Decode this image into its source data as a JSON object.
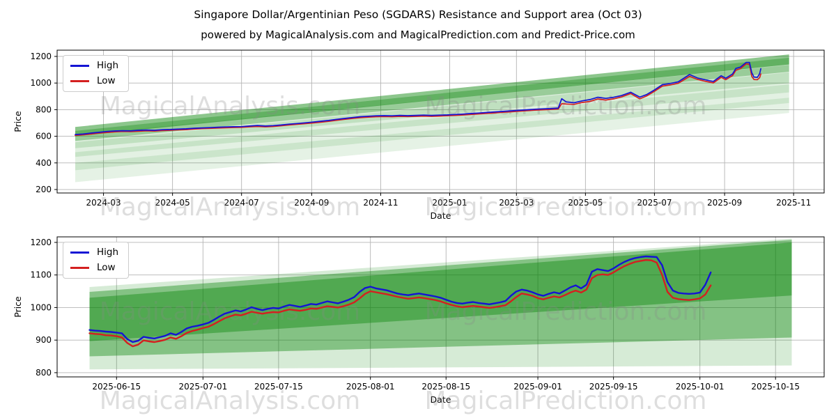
{
  "title": "Singapore Dollar/Argentinian Peso (SGDARS) Resistance and Support area (Oct 03)",
  "subtitle": "powered by MagicalAnalysis.com and MagicalPrediction.com and Predict-Price.com",
  "watermark": {
    "texts": [
      "MagicalAnalysis.com",
      "MagicalPrediction.com"
    ],
    "color": "#8a8a8a",
    "opacity": 0.28
  },
  "colors": {
    "high_line": "#1414d4",
    "low_line": "#d42020",
    "band_green": "#008000",
    "grid": "#b4b4b4",
    "spine": "#000000",
    "background": "#ffffff"
  },
  "chart_data": [
    {
      "type": "line",
      "name": "full-history",
      "xlabel": "Date",
      "ylabel": "Price",
      "grid": true,
      "legend_position": "upper left",
      "xlim": [
        "2024-01-20",
        "2025-11-28"
      ],
      "ylim": [
        174,
        1247
      ],
      "yticks": [
        200,
        400,
        600,
        800,
        1000,
        1200
      ],
      "xticks": [
        "2024-03",
        "2024-05",
        "2024-07",
        "2024-09",
        "2024-11",
        "2025-01",
        "2025-03",
        "2025-05",
        "2025-07",
        "2025-09",
        "2025-11"
      ],
      "dates": [
        "2024-02-05",
        "2024-02-12",
        "2024-02-19",
        "2024-02-26",
        "2024-03-04",
        "2024-03-11",
        "2024-03-18",
        "2024-03-25",
        "2024-04-01",
        "2024-04-08",
        "2024-04-15",
        "2024-04-22",
        "2024-04-29",
        "2024-05-06",
        "2024-05-13",
        "2024-05-20",
        "2024-05-27",
        "2024-06-03",
        "2024-06-10",
        "2024-06-17",
        "2024-06-24",
        "2024-07-01",
        "2024-07-08",
        "2024-07-15",
        "2024-07-22",
        "2024-07-29",
        "2024-08-05",
        "2024-08-12",
        "2024-08-19",
        "2024-08-26",
        "2024-09-02",
        "2024-09-09",
        "2024-09-16",
        "2024-09-23",
        "2024-09-30",
        "2024-10-07",
        "2024-10-14",
        "2024-10-21",
        "2024-10-28",
        "2024-11-04",
        "2024-11-11",
        "2024-11-18",
        "2024-11-25",
        "2024-12-02",
        "2024-12-09",
        "2024-12-16",
        "2024-12-23",
        "2024-12-30",
        "2025-01-06",
        "2025-01-13",
        "2025-01-20",
        "2025-01-27",
        "2025-02-03",
        "2025-02-10",
        "2025-02-17",
        "2025-02-24",
        "2025-03-03",
        "2025-03-10",
        "2025-03-17",
        "2025-03-24",
        "2025-03-31",
        "2025-04-07",
        "2025-04-10",
        "2025-04-14",
        "2025-04-21",
        "2025-04-28",
        "2025-05-05",
        "2025-05-12",
        "2025-05-19",
        "2025-05-26",
        "2025-06-02",
        "2025-06-10",
        "2025-06-18",
        "2025-06-24",
        "2025-07-01",
        "2025-07-08",
        "2025-07-15",
        "2025-07-22",
        "2025-08-01",
        "2025-08-08",
        "2025-08-15",
        "2025-08-22",
        "2025-08-29",
        "2025-09-02",
        "2025-09-08",
        "2025-09-11",
        "2025-09-15",
        "2025-09-20",
        "2025-09-23",
        "2025-09-25",
        "2025-09-27",
        "2025-09-30",
        "2025-10-02",
        "2025-10-03"
      ],
      "series": [
        {
          "name": "High",
          "color": "#1414d4",
          "width": 1.7,
          "values": [
            613,
            617,
            624,
            630,
            636,
            640,
            642,
            641,
            645,
            647,
            645,
            649,
            651,
            654,
            656,
            660,
            663,
            665,
            668,
            670,
            672,
            673,
            677,
            681,
            677,
            680,
            685,
            691,
            696,
            701,
            707,
            713,
            719,
            727,
            734,
            741,
            747,
            751,
            754,
            755,
            754,
            757,
            755,
            757,
            759,
            757,
            759,
            761,
            764,
            767,
            771,
            775,
            779,
            783,
            787,
            791,
            795,
            799,
            803,
            806,
            808,
            812,
            882,
            858,
            852,
            866,
            876,
            893,
            885,
            893,
            906,
            931,
            894,
            913,
            948,
            988,
            997,
            1009,
            1064,
            1038,
            1024,
            1012,
            1055,
            1036,
            1068,
            1110,
            1120,
            1155,
            1155,
            1078,
            1045,
            1043,
            1070,
            1108
          ]
        },
        {
          "name": "Low",
          "color": "#d42020",
          "width": 1.7,
          "values": [
            607,
            611,
            617,
            624,
            629,
            633,
            636,
            635,
            638,
            641,
            639,
            643,
            645,
            648,
            650,
            654,
            657,
            659,
            662,
            664,
            666,
            667,
            671,
            674,
            671,
            674,
            679,
            685,
            690,
            695,
            700,
            706,
            712,
            720,
            727,
            734,
            740,
            744,
            747,
            748,
            747,
            750,
            748,
            750,
            752,
            750,
            752,
            754,
            757,
            760,
            764,
            768,
            772,
            776,
            780,
            784,
            788,
            792,
            796,
            799,
            801,
            805,
            845,
            842,
            840,
            854,
            862,
            880,
            872,
            881,
            896,
            921,
            881,
            902,
            938,
            977,
            986,
            998,
            1050,
            1027,
            1013,
            1001,
            1043,
            1025,
            1056,
            1096,
            1108,
            1144,
            1140,
            1050,
            1026,
            1025,
            1040,
            1068
          ]
        }
      ],
      "bands": [
        {
          "x": [
            "2024-02-05",
            "2025-10-28"
          ],
          "top": [
            400,
            890
          ],
          "bottom": [
            255,
            775
          ],
          "alpha": 0.1
        },
        {
          "x": [
            "2024-02-05",
            "2025-10-28"
          ],
          "top": [
            480,
            990
          ],
          "bottom": [
            345,
            850
          ],
          "alpha": 0.11
        },
        {
          "x": [
            "2024-02-05",
            "2025-10-28"
          ],
          "top": [
            555,
            1080
          ],
          "bottom": [
            445,
            930
          ],
          "alpha": 0.12
        },
        {
          "x": [
            "2024-02-05",
            "2025-10-28"
          ],
          "top": [
            610,
            1135
          ],
          "bottom": [
            510,
            1000
          ],
          "alpha": 0.14
        },
        {
          "x": [
            "2024-02-05",
            "2025-10-28"
          ],
          "top": [
            640,
            1190
          ],
          "bottom": [
            565,
            1085
          ],
          "alpha": 0.3
        },
        {
          "x": [
            "2024-02-05",
            "2025-10-28"
          ],
          "top": [
            670,
            1215
          ],
          "bottom": [
            600,
            1140
          ],
          "alpha": 0.45
        }
      ],
      "band_color": "#008000"
    },
    {
      "type": "line",
      "name": "recent-detail",
      "xlabel": "Date",
      "ylabel": "Price",
      "grid": true,
      "legend_position": "upper left",
      "xlim": [
        "2025-06-04",
        "2025-10-24"
      ],
      "ylim": [
        787,
        1217
      ],
      "yticks": [
        800,
        900,
        1000,
        1100,
        1200
      ],
      "xticks": [
        "2025-06-15",
        "2025-07-01",
        "2025-07-15",
        "2025-08-01",
        "2025-08-15",
        "2025-09-01",
        "2025-09-15",
        "2025-10-01",
        "2025-10-15"
      ],
      "x_start": "2025-06-10",
      "x_step_days": 1,
      "series": [
        {
          "name": "High",
          "color": "#1414d4",
          "width": 2.4,
          "values": [
            931,
            929,
            928,
            926,
            925,
            923,
            921,
            903,
            894,
            898,
            910,
            907,
            905,
            909,
            913,
            921,
            916,
            925,
            936,
            941,
            944,
            948,
            953,
            962,
            972,
            981,
            986,
            991,
            988,
            994,
            1001,
            996,
            992,
            996,
            999,
            997,
            1003,
            1008,
            1005,
            1002,
            1006,
            1011,
            1009,
            1014,
            1019,
            1016,
            1013,
            1018,
            1024,
            1032,
            1048,
            1060,
            1064,
            1059,
            1056,
            1053,
            1048,
            1043,
            1040,
            1038,
            1041,
            1043,
            1040,
            1037,
            1034,
            1030,
            1024,
            1018,
            1014,
            1012,
            1015,
            1017,
            1014,
            1012,
            1010,
            1013,
            1016,
            1020,
            1036,
            1049,
            1055,
            1052,
            1047,
            1040,
            1036,
            1042,
            1047,
            1043,
            1052,
            1062,
            1068,
            1059,
            1070,
            1110,
            1118,
            1115,
            1112,
            1120,
            1131,
            1140,
            1147,
            1152,
            1155,
            1157,
            1156,
            1155,
            1130,
            1078,
            1052,
            1045,
            1043,
            1042,
            1043,
            1046,
            1070,
            1108
          ]
        },
        {
          "name": "Low",
          "color": "#d42020",
          "width": 2.4,
          "values": [
            921,
            919,
            918,
            915,
            914,
            912,
            908,
            891,
            881,
            886,
            899,
            896,
            894,
            897,
            901,
            908,
            904,
            912,
            922,
            928,
            932,
            937,
            941,
            949,
            958,
            967,
            973,
            978,
            976,
            981,
            987,
            984,
            981,
            984,
            986,
            985,
            990,
            994,
            992,
            990,
            993,
            997,
            996,
            1000,
            1004,
            1002,
            1000,
            1004,
            1009,
            1016,
            1028,
            1042,
            1050,
            1047,
            1044,
            1041,
            1037,
            1033,
            1030,
            1027,
            1029,
            1031,
            1029,
            1026,
            1023,
            1019,
            1013,
            1008,
            1004,
            1001,
            1003,
            1005,
            1003,
            1001,
            999,
            1001,
            1004,
            1007,
            1019,
            1032,
            1043,
            1040,
            1036,
            1029,
            1025,
            1030,
            1034,
            1031,
            1038,
            1046,
            1052,
            1046,
            1055,
            1090,
            1100,
            1102,
            1100,
            1108,
            1118,
            1127,
            1134,
            1140,
            1143,
            1146,
            1145,
            1138,
            1100,
            1048,
            1030,
            1026,
            1024,
            1023,
            1025,
            1028,
            1040,
            1068
          ]
        }
      ],
      "bands": [
        {
          "x": [
            "2025-06-10",
            "2025-10-18"
          ],
          "top": [
            1063,
            1212
          ],
          "bottom": [
            810,
            822
          ],
          "alpha": 0.16
        },
        {
          "x": [
            "2025-06-10",
            "2025-10-18"
          ],
          "top": [
            1048,
            1208
          ],
          "bottom": [
            850,
            908
          ],
          "alpha": 0.38
        },
        {
          "x": [
            "2025-06-10",
            "2025-10-18"
          ],
          "top": [
            1030,
            1200
          ],
          "bottom": [
            897,
            1037
          ],
          "alpha": 0.38
        }
      ],
      "band_color": "#008000"
    }
  ]
}
